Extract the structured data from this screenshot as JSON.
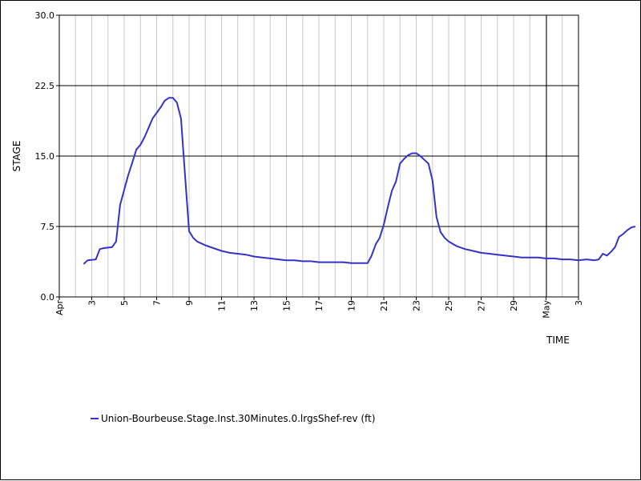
{
  "chart_data": {
    "type": "line",
    "xlabel": "TIME",
    "ylabel": "STAGE",
    "xlim": [
      "Apr 1",
      "May 3"
    ],
    "ylim": [
      0,
      30
    ],
    "y_ticks": [
      "0.0",
      "7.5",
      "15.0",
      "22.5",
      "30.0"
    ],
    "x_ticks": [
      "Apr",
      "3",
      "5",
      "7",
      "9",
      "11",
      "13",
      "15",
      "17",
      "19",
      "21",
      "23",
      "25",
      "27",
      "29",
      "May",
      "3"
    ],
    "grid": {
      "vertical": true,
      "horizontal": true
    },
    "legend_position": "bottom-left",
    "series": [
      {
        "name": "Union-Bourbeuse.Stage.Inst.30Minutes.0.lrgsShef-rev (ft)",
        "color": "#3333cc",
        "points": [
          [
            "Apr 2 12:00",
            3.5
          ],
          [
            "Apr 2 18:00",
            3.9
          ],
          [
            "Apr 3 06:00",
            4.0
          ],
          [
            "Apr 3 12:00",
            5.1
          ],
          [
            "Apr 3 18:00",
            5.2
          ],
          [
            "Apr 4 06:00",
            5.3
          ],
          [
            "Apr 4 12:00",
            5.9
          ],
          [
            "Apr 4 18:00",
            9.8
          ],
          [
            "Apr 5 00:00",
            11.4
          ],
          [
            "Apr 5 06:00",
            13.0
          ],
          [
            "Apr 5 12:00",
            14.3
          ],
          [
            "Apr 5 18:00",
            15.7
          ],
          [
            "Apr 6 00:00",
            16.2
          ],
          [
            "Apr 6 06:00",
            17.0
          ],
          [
            "Apr 6 12:00",
            18.0
          ],
          [
            "Apr 6 18:00",
            19.0
          ],
          [
            "Apr 7 06:00",
            20.2
          ],
          [
            "Apr 7 12:00",
            20.9
          ],
          [
            "Apr 7 18:00",
            21.2
          ],
          [
            "Apr 8 00:00",
            21.2
          ],
          [
            "Apr 8 06:00",
            20.7
          ],
          [
            "Apr 8 12:00",
            19.0
          ],
          [
            "Apr 8 15:00",
            16.0
          ],
          [
            "Apr 8 18:00",
            13.0
          ],
          [
            "Apr 9 00:00",
            7.0
          ],
          [
            "Apr 9 06:00",
            6.3
          ],
          [
            "Apr 9 12:00",
            5.9
          ],
          [
            "Apr 10 00:00",
            5.5
          ],
          [
            "Apr 10 12:00",
            5.2
          ],
          [
            "Apr 11 00:00",
            4.9
          ],
          [
            "Apr 11 12:00",
            4.7
          ],
          [
            "Apr 12 00:00",
            4.6
          ],
          [
            "Apr 12 12:00",
            4.5
          ],
          [
            "Apr 13 00:00",
            4.3
          ],
          [
            "Apr 13 12:00",
            4.2
          ],
          [
            "Apr 14 00:00",
            4.1
          ],
          [
            "Apr 14 12:00",
            4.0
          ],
          [
            "Apr 15 00:00",
            3.9
          ],
          [
            "Apr 15 12:00",
            3.9
          ],
          [
            "Apr 16 00:00",
            3.8
          ],
          [
            "Apr 16 12:00",
            3.8
          ],
          [
            "Apr 17 00:00",
            3.7
          ],
          [
            "Apr 17 12:00",
            3.7
          ],
          [
            "Apr 18 00:00",
            3.7
          ],
          [
            "Apr 18 12:00",
            3.7
          ],
          [
            "Apr 19 00:00",
            3.6
          ],
          [
            "Apr 19 12:00",
            3.6
          ],
          [
            "Apr 20 00:00",
            3.6
          ],
          [
            "Apr 20 06:00",
            4.4
          ],
          [
            "Apr 20 12:00",
            5.6
          ],
          [
            "Apr 20 18:00",
            6.3
          ],
          [
            "Apr 21 00:00",
            7.7
          ],
          [
            "Apr 21 06:00",
            9.6
          ],
          [
            "Apr 21 12:00",
            11.3
          ],
          [
            "Apr 21 18:00",
            12.3
          ],
          [
            "Apr 22 00:00",
            14.2
          ],
          [
            "Apr 22 06:00",
            14.7
          ],
          [
            "Apr 22 12:00",
            15.1
          ],
          [
            "Apr 22 18:00",
            15.3
          ],
          [
            "Apr 23 00:00",
            15.3
          ],
          [
            "Apr 23 06:00",
            15.0
          ],
          [
            "Apr 23 12:00",
            14.6
          ],
          [
            "Apr 23 18:00",
            14.2
          ],
          [
            "Apr 24 00:00",
            12.4
          ],
          [
            "Apr 24 06:00",
            8.5
          ],
          [
            "Apr 24 12:00",
            6.9
          ],
          [
            "Apr 24 18:00",
            6.3
          ],
          [
            "Apr 25 00:00",
            5.9
          ],
          [
            "Apr 25 12:00",
            5.4
          ],
          [
            "Apr 26 00:00",
            5.1
          ],
          [
            "Apr 26 12:00",
            4.9
          ],
          [
            "Apr 27 00:00",
            4.7
          ],
          [
            "Apr 27 12:00",
            4.6
          ],
          [
            "Apr 28 00:00",
            4.5
          ],
          [
            "Apr 28 12:00",
            4.4
          ],
          [
            "Apr 29 00:00",
            4.3
          ],
          [
            "Apr 29 12:00",
            4.2
          ],
          [
            "Apr 30 00:00",
            4.2
          ],
          [
            "Apr 30 12:00",
            4.2
          ],
          [
            "May 1 00:00",
            4.1
          ],
          [
            "May 1 12:00",
            4.1
          ],
          [
            "May 2 00:00",
            4.0
          ],
          [
            "May 2 12:00",
            4.0
          ],
          [
            "May 3 00:00",
            3.9
          ],
          [
            "May 3 12:00",
            4.0
          ],
          [
            "May 4 00:00",
            3.9
          ],
          [
            "May 4 06:00",
            4.0
          ],
          [
            "May 4 12:00",
            4.6
          ],
          [
            "May 4 18:00",
            4.4
          ],
          [
            "May 5 00:00",
            4.8
          ],
          [
            "May 5 06:00",
            5.3
          ],
          [
            "May 5 12:00",
            6.4
          ],
          [
            "May 5 18:00",
            6.7
          ],
          [
            "May 6 00:00",
            7.1
          ],
          [
            "May 6 06:00",
            7.4
          ],
          [
            "May 6 12:00",
            7.5
          ]
        ]
      }
    ]
  }
}
